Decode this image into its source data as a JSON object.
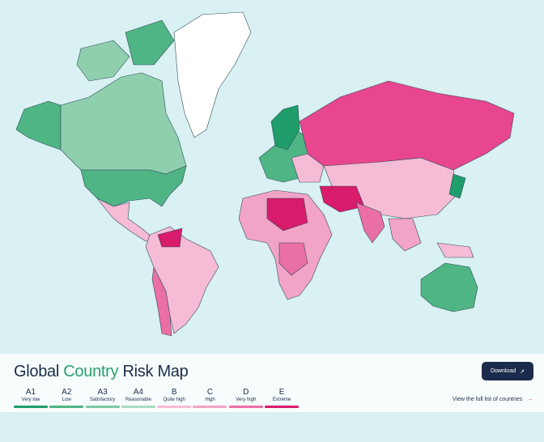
{
  "title": {
    "parts": [
      "Global",
      "Country",
      "Risk",
      "Map"
    ]
  },
  "legend": {
    "items": [
      {
        "code": "A1",
        "label": "Very low"
      },
      {
        "code": "A2",
        "label": "Low"
      },
      {
        "code": "A3",
        "label": "Satisfactory"
      },
      {
        "code": "A4",
        "label": "Reasonable"
      },
      {
        "code": "B",
        "label": "Quite high"
      },
      {
        "code": "C",
        "label": "High"
      },
      {
        "code": "D",
        "label": "Very high"
      },
      {
        "code": "E",
        "label": "Extreme"
      }
    ]
  },
  "download_button": "Download",
  "link": "View the full list of countries"
}
